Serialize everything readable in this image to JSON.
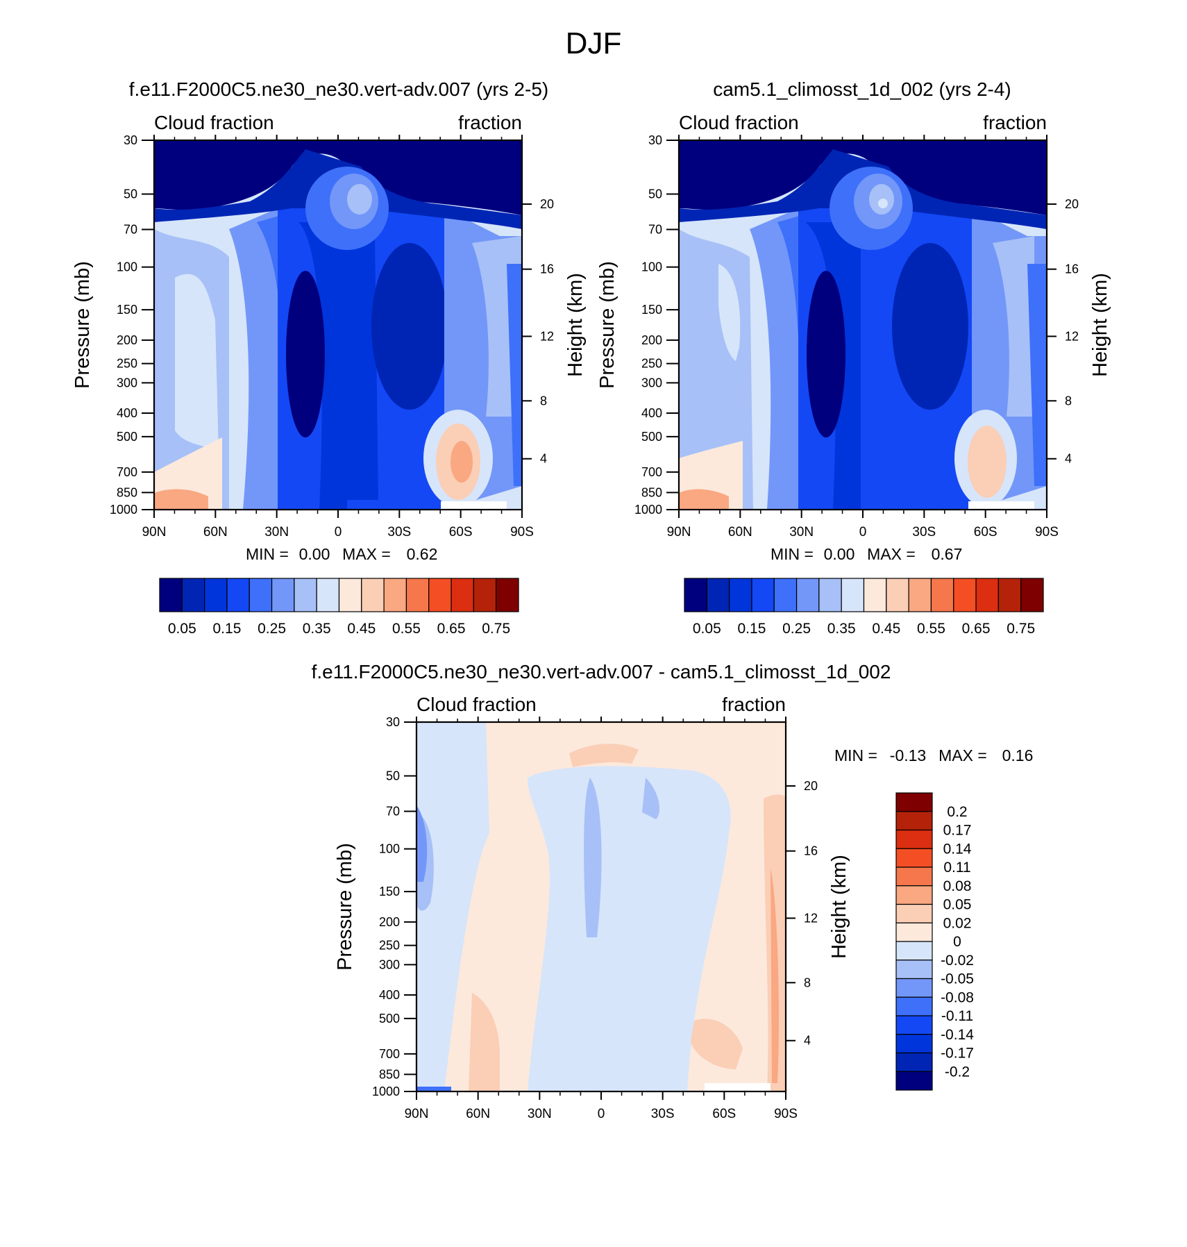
{
  "title": "DJF",
  "colors": {
    "cloud_levels": [
      "#00007f",
      "#0025b5",
      "#0035db",
      "#1448f5",
      "#3e70fa",
      "#7397f8",
      "#a7c0f7",
      "#d6e5fa",
      "#fce9dc",
      "#fbceb6",
      "#f9a882",
      "#f6774b",
      "#f44e24",
      "#dc2e10",
      "#b42209",
      "#7f0000"
    ],
    "diff_levels": [
      "#00007f",
      "#0025b5",
      "#0035db",
      "#1448f5",
      "#3e70fa",
      "#7397f8",
      "#a7c0f7",
      "#d6e5fa",
      "#fce9dc",
      "#fbceb6",
      "#f9a882",
      "#f6774b",
      "#f44e24",
      "#dc2e10",
      "#b42209",
      "#7f0000"
    ]
  },
  "chart_data": [
    {
      "type": "contour",
      "title": "f.e11.F2000C5.ne30_ne30.vert-adv.007 (yrs 2-5)",
      "left_label": "Cloud fraction",
      "right_label": "fraction",
      "xlabel": "",
      "ylabel": "Pressure (mb)",
      "ylabel_right": "Height (km)",
      "x_ticks": [
        "90N",
        "60N",
        "30N",
        "0",
        "30S",
        "60S",
        "90S"
      ],
      "x_range": [
        90,
        -90
      ],
      "y_ticks": [
        "30",
        "50",
        "70",
        "100",
        "150",
        "200",
        "250",
        "300",
        "400",
        "500",
        "700",
        "850",
        "1000"
      ],
      "y_range": [
        1000,
        30
      ],
      "y_scale": "log",
      "y_right_ticks": [
        "20",
        "16",
        "12",
        "8",
        "4"
      ],
      "min_label": "MIN =",
      "min_value": "0.00",
      "max_label": "MAX =",
      "max_value": "0.62",
      "colorbar_labels": [
        "0.05",
        "0.15",
        "0.25",
        "0.35",
        "0.45",
        "0.55",
        "0.65",
        "0.75"
      ],
      "colorbar_levels": [
        0.05,
        0.1,
        0.15,
        0.2,
        0.25,
        0.3,
        0.35,
        0.4,
        0.45,
        0.5,
        0.55,
        0.6,
        0.65,
        0.7,
        0.75
      ]
    },
    {
      "type": "contour",
      "title": "cam5.1_climosst_1d_002 (yrs 2-4)",
      "left_label": "Cloud fraction",
      "right_label": "fraction",
      "xlabel": "",
      "ylabel": "Pressure (mb)",
      "ylabel_right": "Height (km)",
      "x_ticks": [
        "90N",
        "60N",
        "30N",
        "0",
        "30S",
        "60S",
        "90S"
      ],
      "x_range": [
        90,
        -90
      ],
      "y_ticks": [
        "30",
        "50",
        "70",
        "100",
        "150",
        "200",
        "250",
        "300",
        "400",
        "500",
        "700",
        "850",
        "1000"
      ],
      "y_range": [
        1000,
        30
      ],
      "y_scale": "log",
      "y_right_ticks": [
        "20",
        "16",
        "12",
        "8",
        "4"
      ],
      "min_label": "MIN =",
      "min_value": "0.00",
      "max_label": "MAX =",
      "max_value": "0.67",
      "colorbar_labels": [
        "0.05",
        "0.15",
        "0.25",
        "0.35",
        "0.45",
        "0.55",
        "0.65",
        "0.75"
      ],
      "colorbar_levels": [
        0.05,
        0.1,
        0.15,
        0.2,
        0.25,
        0.3,
        0.35,
        0.4,
        0.45,
        0.5,
        0.55,
        0.6,
        0.65,
        0.7,
        0.75
      ]
    },
    {
      "type": "contour",
      "title": "f.e11.F2000C5.ne30_ne30.vert-adv.007 - cam5.1_climosst_1d_002",
      "left_label": "Cloud fraction",
      "right_label": "fraction",
      "xlabel": "",
      "ylabel": "Pressure (mb)",
      "ylabel_right": "Height (km)",
      "x_ticks": [
        "90N",
        "60N",
        "30N",
        "0",
        "30S",
        "60S",
        "90S"
      ],
      "x_range": [
        90,
        -90
      ],
      "y_ticks": [
        "30",
        "50",
        "70",
        "100",
        "150",
        "200",
        "250",
        "300",
        "400",
        "500",
        "700",
        "850",
        "1000"
      ],
      "y_range": [
        1000,
        30
      ],
      "y_scale": "log",
      "y_right_ticks": [
        "20",
        "16",
        "12",
        "8",
        "4"
      ],
      "min_label": "MIN =",
      "min_value": "-0.13",
      "max_label": "MAX =",
      "max_value": "0.16",
      "colorbar_labels": [
        "0.2",
        "0.17",
        "0.14",
        "0.11",
        "0.08",
        "0.05",
        "0.02",
        "0",
        "-0.02",
        "-0.05",
        "-0.08",
        "-0.11",
        "-0.14",
        "-0.17",
        "-0.2"
      ]
    }
  ]
}
